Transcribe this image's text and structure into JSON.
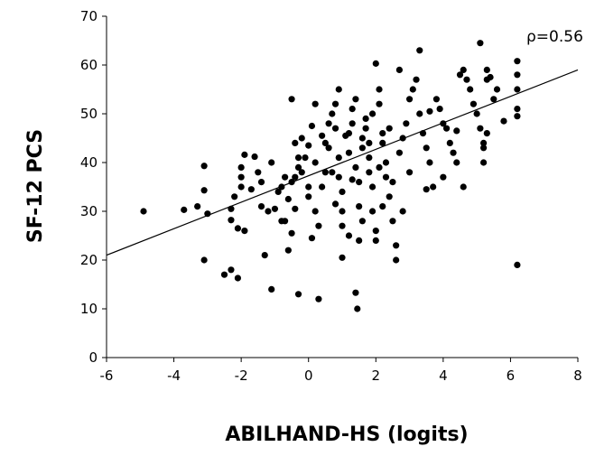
{
  "chart_data": {
    "type": "scatter",
    "title": "",
    "xlabel": "ABILHAND-HS (logits)",
    "ylabel": "SF-12 PCS",
    "xlim": [
      -6,
      8
    ],
    "ylim": [
      0,
      70
    ],
    "xticks": [
      "-6",
      "-4",
      "-2",
      "0",
      "2",
      "4",
      "6",
      "8"
    ],
    "yticks": [
      "0",
      "10",
      "20",
      "30",
      "40",
      "50",
      "60",
      "70"
    ],
    "grid": false,
    "annotation": "ρ=0.56",
    "trendline": {
      "x": [
        -6,
        8
      ],
      "y": [
        21,
        59
      ]
    },
    "points": [
      [
        -4.9,
        30
      ],
      [
        -3.7,
        30.3
      ],
      [
        -3.3,
        31
      ],
      [
        -3.1,
        39.3
      ],
      [
        -3.1,
        34.3
      ],
      [
        -3,
        29.5
      ],
      [
        -3.1,
        20
      ],
      [
        -2.5,
        17
      ],
      [
        -2.3,
        18
      ],
      [
        -2.1,
        16.3
      ],
      [
        -2.3,
        30.5
      ],
      [
        -2.3,
        28.2
      ],
      [
        -2.1,
        26.5
      ],
      [
        -1.9,
        26
      ],
      [
        -2.2,
        33
      ],
      [
        -2,
        35
      ],
      [
        -2,
        37
      ],
      [
        -2,
        39
      ],
      [
        -1.9,
        41.6
      ],
      [
        -1.6,
        41.2
      ],
      [
        -1.5,
        38
      ],
      [
        -1.7,
        34.5
      ],
      [
        -1.4,
        31
      ],
      [
        -1.3,
        21
      ],
      [
        -1.1,
        14
      ],
      [
        -1.2,
        30
      ],
      [
        -1,
        30.5
      ],
      [
        -0.9,
        34
      ],
      [
        -0.8,
        35
      ],
      [
        -0.7,
        28
      ],
      [
        -0.6,
        32.5
      ],
      [
        -0.5,
        36
      ],
      [
        -0.4,
        37
      ],
      [
        -0.3,
        41
      ],
      [
        -0.4,
        44
      ],
      [
        -0.2,
        45
      ],
      [
        -0.3,
        39
      ],
      [
        -0.4,
        30.5
      ],
      [
        -0.5,
        25.5
      ],
      [
        -0.6,
        22
      ],
      [
        -0.3,
        13
      ],
      [
        -0.1,
        41
      ],
      [
        0,
        43.5
      ],
      [
        0.1,
        47.5
      ],
      [
        0,
        35
      ],
      [
        0,
        33
      ],
      [
        0.2,
        30
      ],
      [
        0.1,
        24.5
      ],
      [
        0.3,
        12
      ],
      [
        0.3,
        27
      ],
      [
        0.4,
        35
      ],
      [
        0.5,
        38
      ],
      [
        0.5,
        44
      ],
      [
        0.6,
        48
      ],
      [
        0.7,
        50
      ],
      [
        0.8,
        52
      ],
      [
        0.8,
        47
      ],
      [
        0.9,
        41
      ],
      [
        0.9,
        37
      ],
      [
        1,
        34
      ],
      [
        1,
        30
      ],
      [
        1,
        27
      ],
      [
        1,
        20.5
      ],
      [
        1.2,
        42
      ],
      [
        1.2,
        46
      ],
      [
        1.3,
        48
      ],
      [
        1.3,
        51
      ],
      [
        1.4,
        53
      ],
      [
        1.4,
        39
      ],
      [
        1.5,
        36
      ],
      [
        1.5,
        31
      ],
      [
        1.5,
        24
      ],
      [
        1.4,
        13.3
      ],
      [
        1.45,
        10
      ],
      [
        1.6,
        43
      ],
      [
        1.6,
        45
      ],
      [
        1.7,
        47
      ],
      [
        1.7,
        49
      ],
      [
        1.8,
        41
      ],
      [
        1.8,
        38
      ],
      [
        1.9,
        35
      ],
      [
        1.9,
        30
      ],
      [
        2,
        26
      ],
      [
        2,
        24
      ],
      [
        2,
        60.3
      ],
      [
        2.1,
        55
      ],
      [
        2.1,
        52
      ],
      [
        2.2,
        46
      ],
      [
        2.2,
        44
      ],
      [
        2.3,
        40
      ],
      [
        2.3,
        37
      ],
      [
        2.4,
        33
      ],
      [
        2.5,
        28
      ],
      [
        2.6,
        23
      ],
      [
        2.6,
        20
      ],
      [
        2.7,
        42
      ],
      [
        2.8,
        45
      ],
      [
        2.9,
        48
      ],
      [
        3,
        53
      ],
      [
        3.1,
        55
      ],
      [
        3.2,
        57
      ],
      [
        3.3,
        63
      ],
      [
        3.3,
        50
      ],
      [
        3.4,
        46
      ],
      [
        3.5,
        43
      ],
      [
        3.6,
        40
      ],
      [
        3.7,
        35
      ],
      [
        3.8,
        53
      ],
      [
        3.9,
        51
      ],
      [
        4,
        48
      ],
      [
        4.1,
        47
      ],
      [
        4.2,
        44
      ],
      [
        4.3,
        42
      ],
      [
        4.4,
        40
      ],
      [
        4.5,
        58
      ],
      [
        4.6,
        59
      ],
      [
        4.7,
        57
      ],
      [
        4.8,
        55
      ],
      [
        4.9,
        52
      ],
      [
        5,
        50
      ],
      [
        5.1,
        47
      ],
      [
        5.2,
        44
      ],
      [
        5.2,
        43
      ],
      [
        5.3,
        46
      ],
      [
        5.5,
        53
      ],
      [
        5.6,
        55
      ],
      [
        5.1,
        64.5
      ],
      [
        5.3,
        59
      ],
      [
        5.4,
        57.5
      ],
      [
        5.3,
        57
      ],
      [
        5.8,
        48.5
      ],
      [
        6.2,
        60.8
      ],
      [
        6.2,
        58
      ],
      [
        6.2,
        55
      ],
      [
        6.2,
        51
      ],
      [
        6.2,
        49.5
      ],
      [
        6.2,
        19
      ],
      [
        5.2,
        40
      ],
      [
        4.6,
        35
      ],
      [
        4,
        37
      ],
      [
        3.5,
        34.5
      ],
      [
        2.8,
        30
      ],
      [
        2.1,
        39
      ],
      [
        1.8,
        44
      ],
      [
        1.1,
        45.5
      ],
      [
        0.6,
        43
      ],
      [
        0.2,
        40
      ],
      [
        -0.2,
        38
      ],
      [
        -0.7,
        37
      ],
      [
        -1.1,
        40
      ],
      [
        -1.4,
        36
      ],
      [
        0.7,
        38
      ],
      [
        1.3,
        36.5
      ],
      [
        2.5,
        36
      ],
      [
        3,
        38
      ],
      [
        2.4,
        47
      ],
      [
        1.9,
        50
      ],
      [
        0.9,
        55
      ],
      [
        0.2,
        52
      ],
      [
        -0.5,
        53
      ],
      [
        0.4,
        45.5
      ],
      [
        1.6,
        28
      ],
      [
        2.2,
        31
      ],
      [
        3.6,
        50.5
      ],
      [
        4.4,
        46.5
      ],
      [
        2.7,
        59
      ],
      [
        0.8,
        31.5
      ],
      [
        -0.8,
        28
      ],
      [
        1.2,
        25
      ]
    ]
  }
}
